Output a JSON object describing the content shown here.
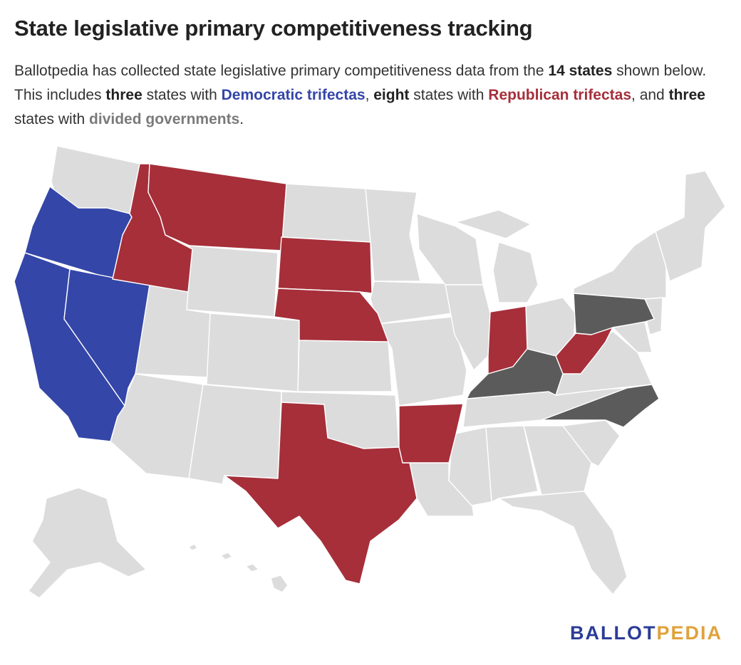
{
  "header": {
    "title": "State legislative primary competitiveness tracking",
    "intro_1": "Ballotpedia has collected state legislative primary competitiveness data from the ",
    "count_states": "14 states",
    "intro_2": " shown below. This includes ",
    "count_dem": "three",
    "intro_3": " states with ",
    "dem_label": "Democratic trifectas",
    "intro_4": ", ",
    "count_rep": "eight",
    "intro_5": " states with ",
    "rep_label": "Republican trifectas",
    "intro_6": ", and ",
    "count_div": "three",
    "intro_7": " states with ",
    "div_label": "divided governments",
    "intro_8": "."
  },
  "colors": {
    "democratic": "#3446a8",
    "republican": "#a62f3a",
    "divided": "#5b5b5b",
    "not_tracked": "#dcdcdc"
  },
  "states": {
    "democratic": [
      "Oregon",
      "California",
      "Nevada"
    ],
    "republican": [
      "Idaho",
      "Montana",
      "South Dakota",
      "Nebraska",
      "Texas",
      "Arkansas",
      "Indiana",
      "West Virginia"
    ],
    "divided": [
      "Pennsylvania",
      "Kentucky",
      "North Carolina"
    ]
  },
  "logo": {
    "part1": "BALLOT",
    "part2": "PEDIA"
  }
}
